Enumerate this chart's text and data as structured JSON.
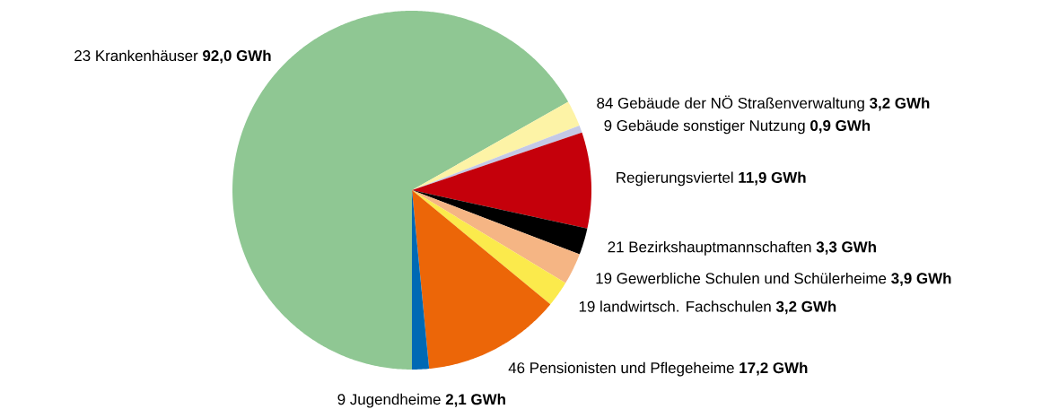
{
  "chart_data": {
    "type": "pie",
    "categories": [
      "23 Krankenhäuser",
      "84 Gebäude der NÖ Straßenverwaltung",
      "9 Gebäude sonstiger Nutzung",
      "Regierungsviertel",
      "21 Bezirkshauptmannschaften",
      "19 Gewerbliche Schulen und Schülerheime",
      "19 landwirtsch. Fachschulen",
      "46 Pensionisten und Pflegeheime",
      "9 Jugendheime"
    ],
    "values": [
      92.0,
      3.2,
      0.9,
      11.9,
      3.3,
      3.9,
      3.2,
      17.2,
      2.1
    ],
    "value_labels": [
      "92,0 GWh",
      "3,2 GWh",
      "0,9 GWh",
      "11,9 GWh",
      "3,3 GWh",
      "3,9 GWh",
      "3,2 GWh",
      "17,2 GWh",
      "2,1 GWh"
    ],
    "colors": [
      "#8fc793",
      "#fdf3a6",
      "#c4c9e6",
      "#c5000b",
      "#000000",
      "#f5b584",
      "#fbea4c",
      "#ec6608",
      "#0069b4"
    ]
  }
}
